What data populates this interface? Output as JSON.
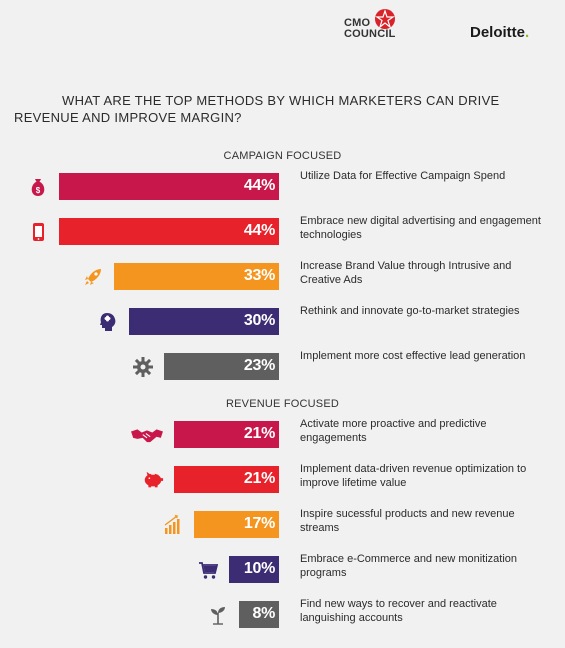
{
  "header": {
    "cmo_line1": "CMO",
    "cmo_line2": "COUNCIL",
    "deloitte": "Deloitte",
    "deloitte_dot": "."
  },
  "title": "WHAT ARE THE TOP METHODS BY WHICH MARKETERS CAN DRIVE REVENUE AND IMPROVE MARGIN?",
  "colors": {
    "crimson": "#c8174a",
    "red": "#e8222b",
    "orange": "#f4951f",
    "navy": "#3c2c74",
    "gray": "#5f5f5f"
  },
  "chart_data": {
    "type": "bar",
    "unit": "%",
    "groups": [
      {
        "name": "CAMPAIGN FOCUSED",
        "items": [
          {
            "label": "Utilize Data for Effective Campaign Spend",
            "value": 44,
            "display": "44%",
            "color": "#c8174a",
            "icon": "money-bag-icon"
          },
          {
            "label": "Embrace new digital advertising and engagement technologies",
            "value": 44,
            "display": "44%",
            "color": "#e8222b",
            "icon": "mobile-phone-icon"
          },
          {
            "label": "Increase Brand Value through Intrusive and Creative Ads",
            "value": 33,
            "display": "33%",
            "color": "#f4951f",
            "icon": "rocket-icon"
          },
          {
            "label": "Rethink and innovate go-to-market strategies",
            "value": 30,
            "display": "30%",
            "color": "#3c2c74",
            "icon": "brain-head-icon"
          },
          {
            "label": "Implement more cost effective lead generation",
            "value": 23,
            "display": "23%",
            "color": "#5f5f5f",
            "icon": "gear-icon"
          }
        ]
      },
      {
        "name": "REVENUE FOCUSED",
        "items": [
          {
            "label": "Activate more proactive and predictive engagements",
            "value": 21,
            "display": "21%",
            "color": "#c8174a",
            "icon": "handshake-icon"
          },
          {
            "label": "Implement data-driven revenue optimization to improve lifetime value",
            "value": 21,
            "display": "21%",
            "color": "#e8222b",
            "icon": "piggy-bank-icon"
          },
          {
            "label": "Inspire sucessful products and new revenue streams",
            "value": 17,
            "display": "17%",
            "color": "#f4951f",
            "icon": "growth-chart-icon"
          },
          {
            "label": "Embrace e-Commerce and new monitization programs",
            "value": 10,
            "display": "10%",
            "color": "#3c2c74",
            "icon": "shopping-cart-icon"
          },
          {
            "label": "Find new ways to recover and reactivate languishing accounts",
            "value": 8,
            "display": "8%",
            "color": "#5f5f5f",
            "icon": "sprout-icon"
          }
        ]
      }
    ]
  }
}
